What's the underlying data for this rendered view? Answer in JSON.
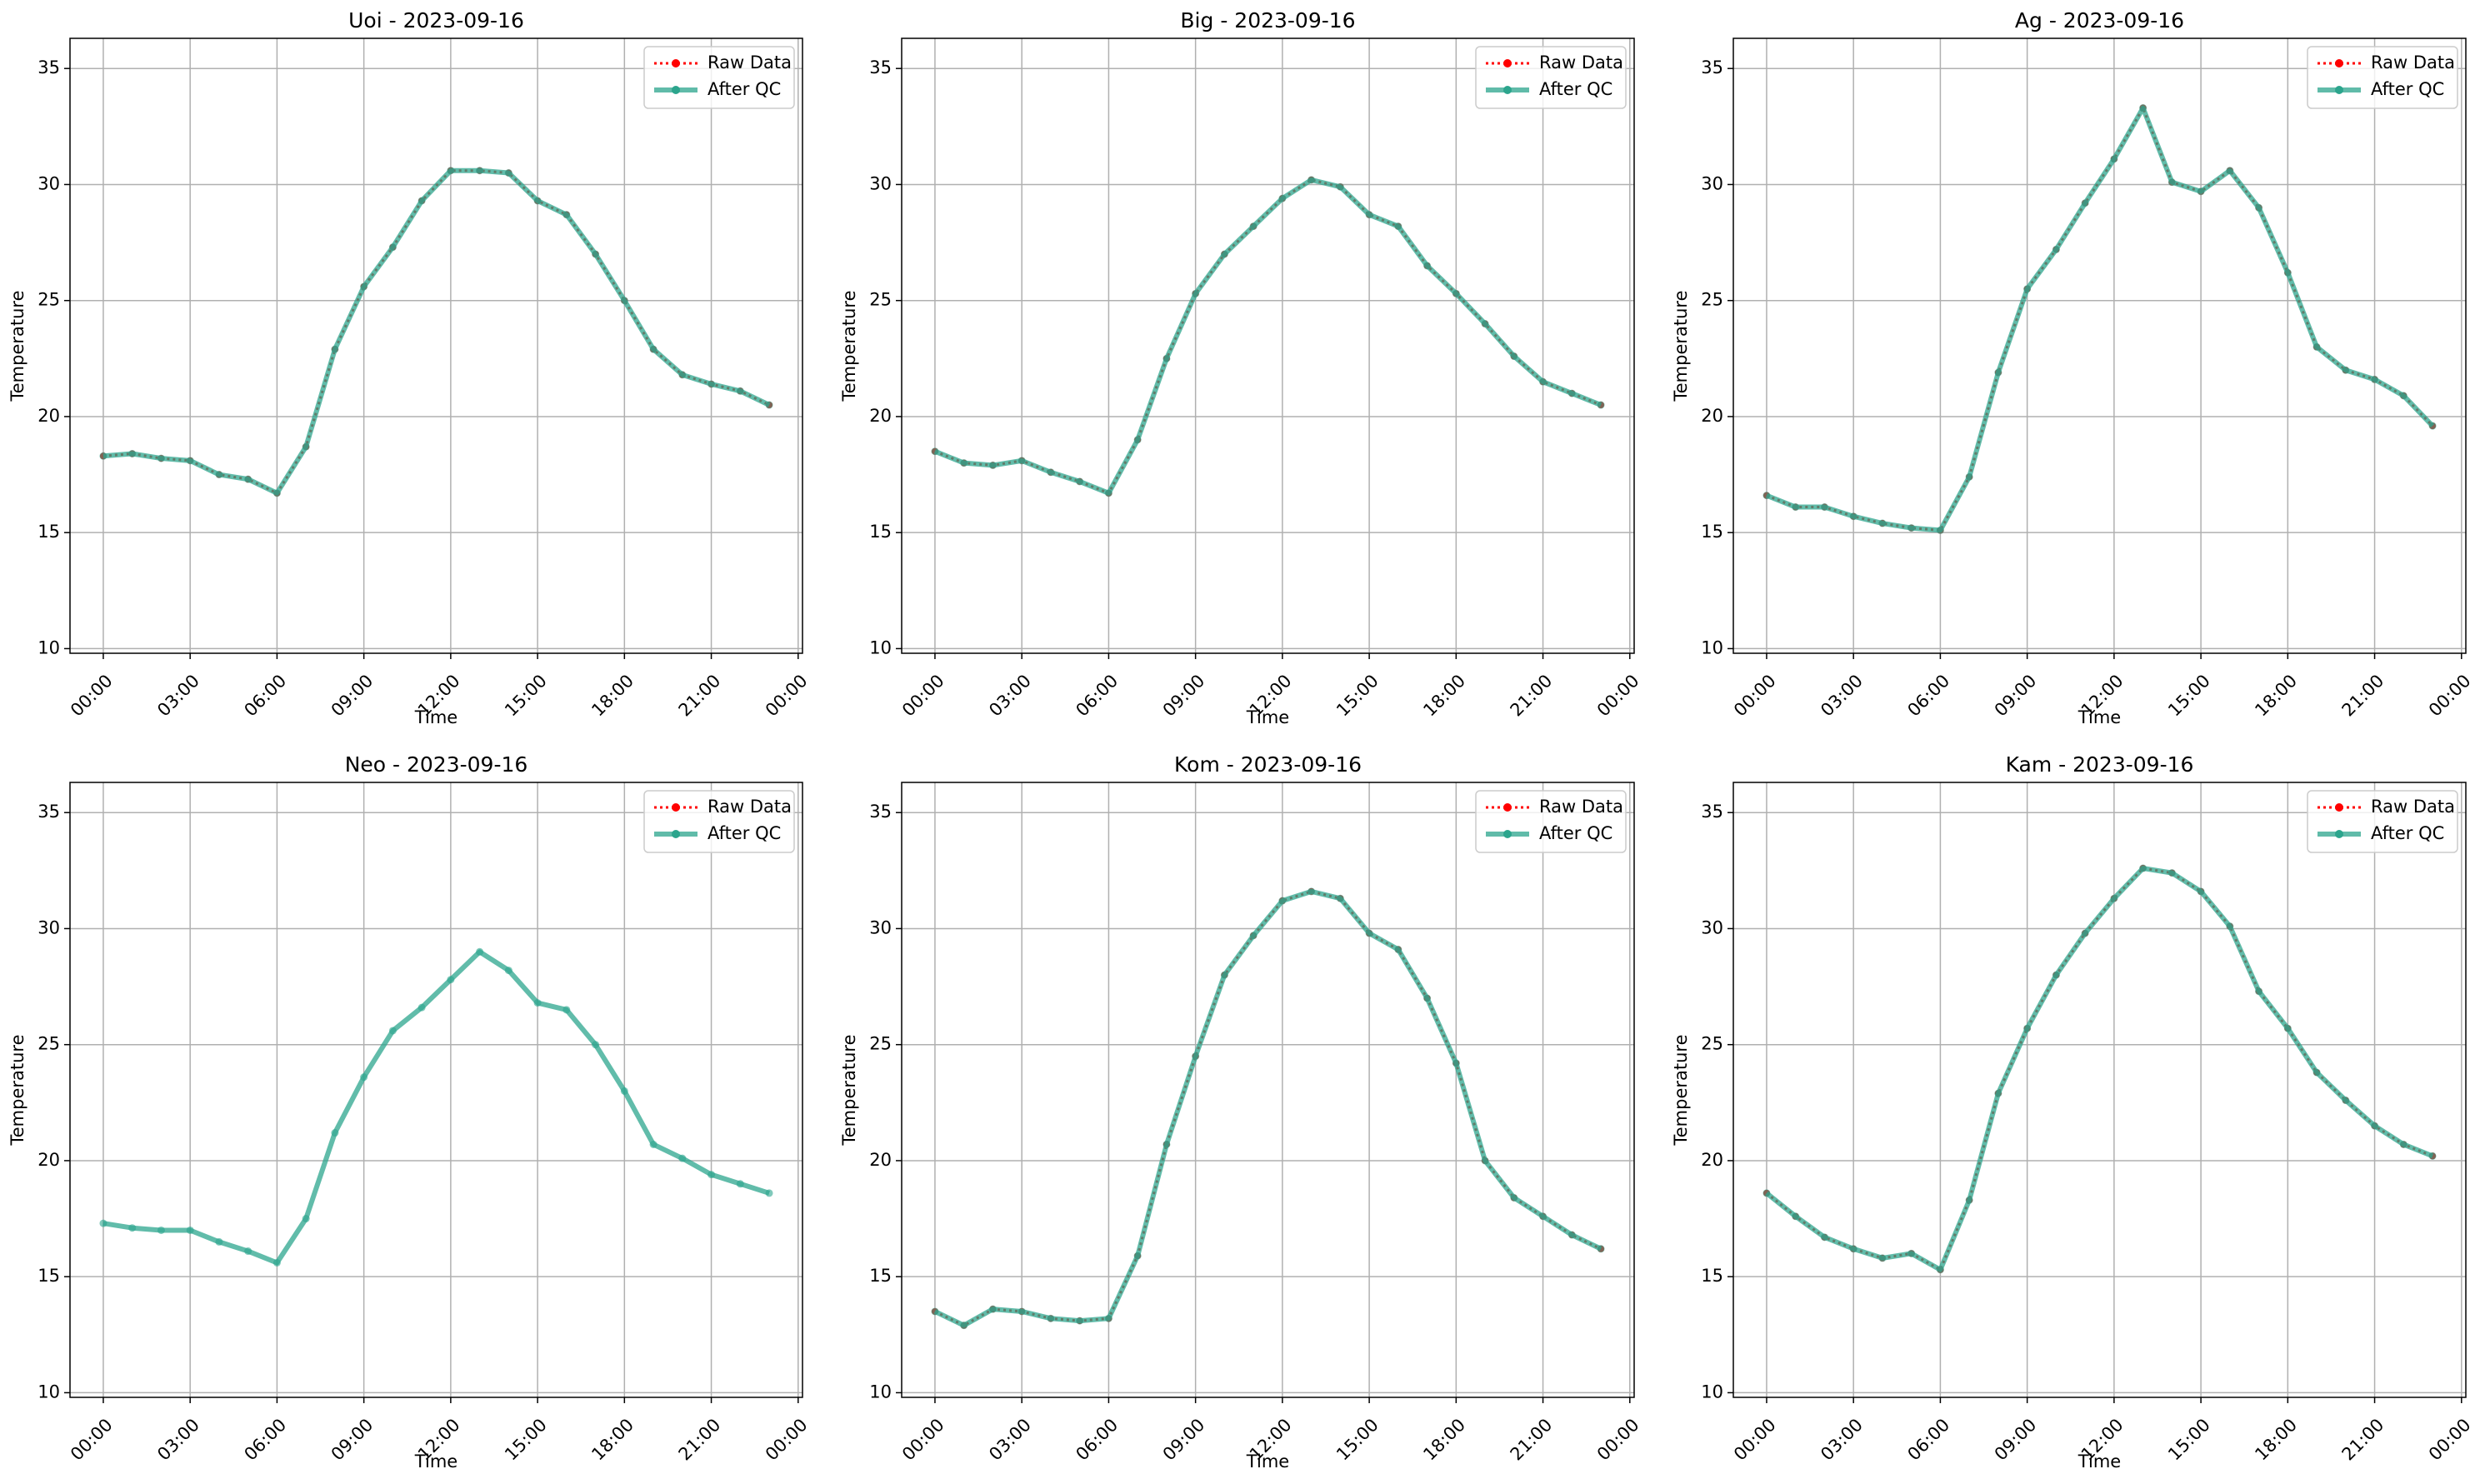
{
  "chart_data": [
    {
      "type": "line",
      "title": "Uoi - 2023-09-16",
      "xlabel": "Time",
      "ylabel": "Temperature",
      "x": [
        0,
        1,
        2,
        3,
        4,
        5,
        6,
        7,
        8,
        9,
        10,
        11,
        12,
        13,
        14,
        15,
        16,
        17,
        18,
        19,
        20,
        21,
        22,
        23
      ],
      "series": [
        {
          "name": "Raw Data",
          "color": "#ff0000",
          "values": [
            18.3,
            18.4,
            18.2,
            18.1,
            17.5,
            17.3,
            16.7,
            18.7,
            22.9,
            25.6,
            27.3,
            29.3,
            30.6,
            30.6,
            30.5,
            29.3,
            28.7,
            27.0,
            25.0,
            22.9,
            21.8,
            21.4,
            21.1,
            20.5
          ]
        },
        {
          "name": "After QC",
          "color": "#2ca58d",
          "values": [
            18.3,
            18.4,
            18.2,
            18.1,
            17.5,
            17.3,
            16.7,
            18.7,
            22.9,
            25.6,
            27.3,
            29.3,
            30.6,
            30.6,
            30.5,
            29.3,
            28.7,
            27.0,
            25.0,
            22.9,
            21.8,
            21.4,
            21.1,
            20.5
          ]
        }
      ],
      "xlim": [
        -1.15,
        24.15
      ],
      "xticks": [
        {
          "value": 0,
          "label": "00:00"
        },
        {
          "value": 3,
          "label": "03:00"
        },
        {
          "value": 6,
          "label": "06:00"
        },
        {
          "value": 9,
          "label": "09:00"
        },
        {
          "value": 12,
          "label": "12:00"
        },
        {
          "value": 15,
          "label": "15:00"
        },
        {
          "value": 18,
          "label": "18:00"
        },
        {
          "value": 21,
          "label": "21:00"
        },
        {
          "value": 24,
          "label": "00:00"
        }
      ],
      "ylim": [
        9.8,
        36.3
      ],
      "yticks": [
        10,
        15,
        20,
        25,
        30,
        35
      ],
      "grid": true,
      "legend": "upper right"
    },
    {
      "type": "line",
      "title": "Big - 2023-09-16",
      "xlabel": "Time",
      "ylabel": "Temperature",
      "x": [
        0,
        1,
        2,
        3,
        4,
        5,
        6,
        7,
        8,
        9,
        10,
        11,
        12,
        13,
        14,
        15,
        16,
        17,
        18,
        19,
        20,
        21,
        22,
        23
      ],
      "series": [
        {
          "name": "Raw Data",
          "color": "#ff0000",
          "values": [
            18.5,
            18.0,
            17.9,
            18.1,
            17.6,
            17.2,
            16.7,
            19.0,
            22.5,
            25.3,
            27.0,
            28.2,
            29.4,
            30.2,
            29.9,
            28.7,
            28.2,
            26.5,
            25.3,
            24.0,
            22.6,
            21.5,
            21.0,
            20.5
          ]
        },
        {
          "name": "After QC",
          "color": "#2ca58d",
          "values": [
            18.5,
            18.0,
            17.9,
            18.1,
            17.6,
            17.2,
            16.7,
            19.0,
            22.5,
            25.3,
            27.0,
            28.2,
            29.4,
            30.2,
            29.9,
            28.7,
            28.2,
            26.5,
            25.3,
            24.0,
            22.6,
            21.5,
            21.0,
            20.5
          ]
        }
      ],
      "xlim": [
        -1.15,
        24.15
      ],
      "xticks": [
        {
          "value": 0,
          "label": "00:00"
        },
        {
          "value": 3,
          "label": "03:00"
        },
        {
          "value": 6,
          "label": "06:00"
        },
        {
          "value": 9,
          "label": "09:00"
        },
        {
          "value": 12,
          "label": "12:00"
        },
        {
          "value": 15,
          "label": "15:00"
        },
        {
          "value": 18,
          "label": "18:00"
        },
        {
          "value": 21,
          "label": "21:00"
        },
        {
          "value": 24,
          "label": "00:00"
        }
      ],
      "ylim": [
        9.8,
        36.3
      ],
      "yticks": [
        10,
        15,
        20,
        25,
        30,
        35
      ],
      "grid": true,
      "legend": "upper right"
    },
    {
      "type": "line",
      "title": "Ag - 2023-09-16",
      "xlabel": "Time",
      "ylabel": "Temperature",
      "x": [
        0,
        1,
        2,
        3,
        4,
        5,
        6,
        7,
        8,
        9,
        10,
        11,
        12,
        13,
        14,
        15,
        16,
        17,
        18,
        19,
        20,
        21,
        22,
        23
      ],
      "series": [
        {
          "name": "Raw Data",
          "color": "#ff0000",
          "values": [
            16.6,
            16.1,
            16.1,
            15.7,
            15.4,
            15.2,
            15.1,
            17.4,
            21.9,
            25.5,
            27.2,
            29.2,
            31.1,
            33.3,
            30.1,
            29.7,
            30.6,
            29.0,
            26.2,
            23.0,
            22.0,
            21.6,
            20.9,
            19.6
          ]
        },
        {
          "name": "After QC",
          "color": "#2ca58d",
          "values": [
            16.6,
            16.1,
            16.1,
            15.7,
            15.4,
            15.2,
            15.1,
            17.4,
            21.9,
            25.5,
            27.2,
            29.2,
            31.1,
            33.3,
            30.1,
            29.7,
            30.6,
            29.0,
            26.2,
            23.0,
            22.0,
            21.6,
            20.9,
            19.6
          ]
        }
      ],
      "xlim": [
        -1.15,
        24.15
      ],
      "xticks": [
        {
          "value": 0,
          "label": "00:00"
        },
        {
          "value": 3,
          "label": "03:00"
        },
        {
          "value": 6,
          "label": "06:00"
        },
        {
          "value": 9,
          "label": "09:00"
        },
        {
          "value": 12,
          "label": "12:00"
        },
        {
          "value": 15,
          "label": "15:00"
        },
        {
          "value": 18,
          "label": "18:00"
        },
        {
          "value": 21,
          "label": "21:00"
        },
        {
          "value": 24,
          "label": "00:00"
        }
      ],
      "ylim": [
        9.8,
        36.3
      ],
      "yticks": [
        10,
        15,
        20,
        25,
        30,
        35
      ],
      "grid": true,
      "legend": "upper right"
    },
    {
      "type": "line",
      "title": "Neo - 2023-09-16",
      "xlabel": "Time",
      "ylabel": "Temperature",
      "x": [
        0,
        1,
        2,
        3,
        4,
        5,
        6,
        7,
        8,
        9,
        10,
        11,
        12,
        13,
        14,
        15,
        16,
        17,
        18,
        19,
        20,
        21,
        22,
        23
      ],
      "series": [
        {
          "name": "Raw Data",
          "color": "#ff0000",
          "values": [
            null,
            null,
            null,
            null,
            null,
            null,
            null,
            null,
            null,
            null,
            null,
            null,
            null,
            null,
            null,
            null,
            null,
            null,
            null,
            null,
            null,
            null,
            null,
            null
          ]
        },
        {
          "name": "After QC",
          "color": "#2ca58d",
          "values": [
            17.3,
            17.1,
            17.0,
            17.0,
            16.5,
            16.1,
            15.6,
            17.5,
            21.2,
            23.6,
            25.6,
            26.6,
            27.8,
            29.0,
            28.2,
            26.8,
            26.5,
            25.0,
            23.0,
            20.7,
            20.1,
            19.4,
            19.0,
            18.6
          ]
        }
      ],
      "xlim": [
        -1.15,
        24.15
      ],
      "xticks": [
        {
          "value": 0,
          "label": "00:00"
        },
        {
          "value": 3,
          "label": "03:00"
        },
        {
          "value": 6,
          "label": "06:00"
        },
        {
          "value": 9,
          "label": "09:00"
        },
        {
          "value": 12,
          "label": "12:00"
        },
        {
          "value": 15,
          "label": "15:00"
        },
        {
          "value": 18,
          "label": "18:00"
        },
        {
          "value": 21,
          "label": "21:00"
        },
        {
          "value": 24,
          "label": "00:00"
        }
      ],
      "ylim": [
        9.8,
        36.3
      ],
      "yticks": [
        10,
        15,
        20,
        25,
        30,
        35
      ],
      "grid": true,
      "legend": "upper right"
    },
    {
      "type": "line",
      "title": "Kom - 2023-09-16",
      "xlabel": "Time",
      "ylabel": "Temperature",
      "x": [
        0,
        1,
        2,
        3,
        4,
        5,
        6,
        7,
        8,
        9,
        10,
        11,
        12,
        13,
        14,
        15,
        16,
        17,
        18,
        19,
        20,
        21,
        22,
        23
      ],
      "series": [
        {
          "name": "Raw Data",
          "color": "#ff0000",
          "values": [
            13.5,
            12.9,
            13.6,
            13.5,
            13.2,
            13.1,
            13.2,
            15.9,
            20.7,
            24.5,
            28.0,
            29.7,
            31.2,
            31.6,
            31.3,
            29.8,
            29.1,
            27.0,
            24.2,
            20.0,
            18.4,
            17.6,
            16.8,
            16.2
          ]
        },
        {
          "name": "After QC",
          "color": "#2ca58d",
          "values": [
            13.5,
            12.9,
            13.6,
            13.5,
            13.2,
            13.1,
            13.2,
            15.9,
            20.7,
            24.5,
            28.0,
            29.7,
            31.2,
            31.6,
            31.3,
            29.8,
            29.1,
            27.0,
            24.2,
            20.0,
            18.4,
            17.6,
            16.8,
            16.2
          ]
        }
      ],
      "xlim": [
        -1.15,
        24.15
      ],
      "xticks": [
        {
          "value": 0,
          "label": "00:00"
        },
        {
          "value": 3,
          "label": "03:00"
        },
        {
          "value": 6,
          "label": "06:00"
        },
        {
          "value": 9,
          "label": "09:00"
        },
        {
          "value": 12,
          "label": "12:00"
        },
        {
          "value": 15,
          "label": "15:00"
        },
        {
          "value": 18,
          "label": "18:00"
        },
        {
          "value": 21,
          "label": "21:00"
        },
        {
          "value": 24,
          "label": "00:00"
        }
      ],
      "ylim": [
        9.8,
        36.3
      ],
      "yticks": [
        10,
        15,
        20,
        25,
        30,
        35
      ],
      "grid": true,
      "legend": "upper right"
    },
    {
      "type": "line",
      "title": "Kam - 2023-09-16",
      "xlabel": "Time",
      "ylabel": "Temperature",
      "x": [
        0,
        1,
        2,
        3,
        4,
        5,
        6,
        7,
        8,
        9,
        10,
        11,
        12,
        13,
        14,
        15,
        16,
        17,
        18,
        19,
        20,
        21,
        22,
        23
      ],
      "series": [
        {
          "name": "Raw Data",
          "color": "#ff0000",
          "values": [
            18.6,
            17.6,
            16.7,
            16.2,
            15.8,
            16.0,
            15.3,
            18.3,
            22.9,
            25.7,
            28.0,
            29.8,
            31.3,
            32.6,
            32.4,
            31.6,
            30.1,
            27.3,
            25.7,
            23.8,
            22.6,
            21.5,
            20.7,
            20.2
          ]
        },
        {
          "name": "After QC",
          "color": "#2ca58d",
          "values": [
            18.6,
            17.6,
            16.7,
            16.2,
            15.8,
            16.0,
            15.3,
            18.3,
            22.9,
            25.7,
            28.0,
            29.8,
            31.3,
            32.6,
            32.4,
            31.6,
            30.1,
            27.3,
            25.7,
            23.8,
            22.6,
            21.5,
            20.7,
            20.2
          ]
        }
      ],
      "xlim": [
        -1.15,
        24.15
      ],
      "xticks": [
        {
          "value": 0,
          "label": "00:00"
        },
        {
          "value": 3,
          "label": "03:00"
        },
        {
          "value": 6,
          "label": "06:00"
        },
        {
          "value": 9,
          "label": "09:00"
        },
        {
          "value": 12,
          "label": "12:00"
        },
        {
          "value": 15,
          "label": "15:00"
        },
        {
          "value": 18,
          "label": "18:00"
        },
        {
          "value": 21,
          "label": "21:00"
        },
        {
          "value": 24,
          "label": "00:00"
        }
      ],
      "ylim": [
        9.8,
        36.3
      ],
      "yticks": [
        10,
        15,
        20,
        25,
        30,
        35
      ],
      "grid": true,
      "legend": "upper right"
    }
  ]
}
